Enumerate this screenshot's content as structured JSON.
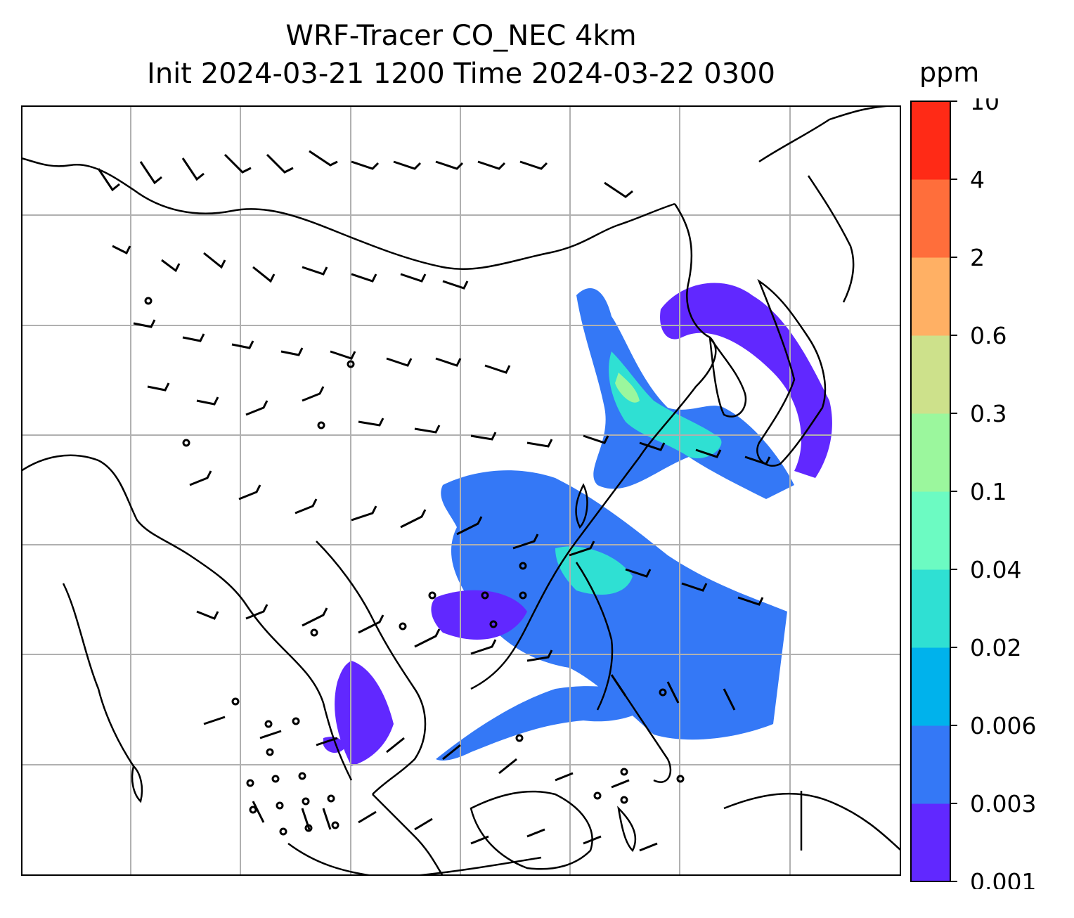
{
  "title": {
    "line1": "WRF-Tracer CO_NEC 4km",
    "line2": "Init 2024-03-21 1200 Time 2024-03-22 0300"
  },
  "colorbar": {
    "unit": "ppm",
    "levels": [
      "0.001",
      "0.003",
      "0.006",
      "0.02",
      "0.04",
      "0.1",
      "0.3",
      "0.6",
      "2",
      "4",
      "10"
    ],
    "colors": [
      "#6128ff",
      "#3478f6",
      "#00b2ec",
      "#2fe0d3",
      "#6cfbc2",
      "#9bf79d",
      "#cde18b",
      "#ffb064",
      "#ff6e3b",
      "#ff2a16"
    ]
  },
  "map": {
    "grid": true,
    "coastline_color": "#000000",
    "gridline_color": "#b0b0b0"
  }
}
